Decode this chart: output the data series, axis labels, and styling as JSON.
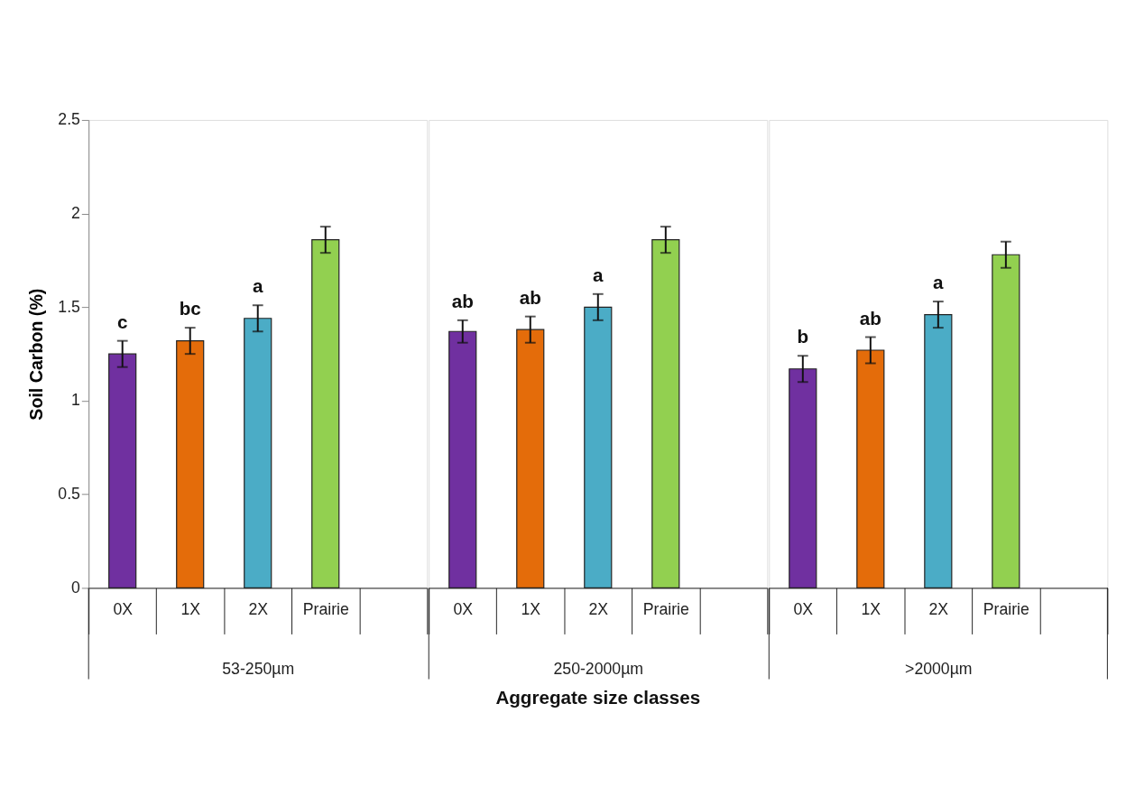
{
  "chart_data": [
    {
      "type": "bar",
      "categories": [
        "0X",
        "1X",
        "2X",
        "Prairie",
        null
      ],
      "values": [
        1.25,
        1.32,
        1.44,
        1.86,
        null
      ],
      "errors": [
        0.07,
        0.07,
        0.07,
        0.07,
        null
      ],
      "colors": [
        "#7030a0",
        "#e46c0a",
        "#4bacc6",
        "#92d050",
        "#ffffff"
      ],
      "xlabel": "53-250µm",
      "ylabel": "Soil Carbon (%)",
      "ylim": [
        0,
        2.5
      ],
      "yticks": [
        0,
        0.5,
        1,
        1.5,
        2,
        2.5
      ],
      "grid": false,
      "legend": false,
      "annotations": [
        {
          "text": "c",
          "x": "0X",
          "y": 1.32
        },
        {
          "text": "bc",
          "x": "1X",
          "y": 1.39
        },
        {
          "text": "a",
          "x": "2X",
          "y": 1.51
        }
      ]
    },
    {
      "type": "bar",
      "categories": [
        "0X",
        "1X",
        "2X",
        "Prairie",
        null
      ],
      "values": [
        1.37,
        1.38,
        1.5,
        1.86,
        null
      ],
      "errors": [
        0.06,
        0.07,
        0.07,
        0.07,
        null
      ],
      "colors": [
        "#7030a0",
        "#e46c0a",
        "#4bacc6",
        "#92d050",
        "#ffffff"
      ],
      "xlabel": "250-2000µm",
      "ylim": [
        0,
        2.5
      ],
      "tick_labels": "x",
      "grid": false,
      "legend": false,
      "annotations": [
        {
          "text": "ab",
          "x": "0X",
          "y": 1.43
        },
        {
          "text": "ab",
          "x": "1X",
          "y": 1.45
        },
        {
          "text": "a",
          "x": "2X",
          "y": 1.57
        },
        "Aggregate size classes"
      ]
    },
    {
      "type": "bar",
      "categories": [
        "0X",
        "1X",
        "2X",
        "Prairie",
        null
      ],
      "values": [
        1.17,
        1.27,
        1.46,
        1.78,
        null
      ],
      "errors": [
        0.07,
        0.07,
        0.07,
        0.07,
        null
      ],
      "colors": [
        "#7030a0",
        "#e46c0a",
        "#4bacc6",
        "#92d050",
        "#ffffff"
      ],
      "xlabel": ">2000µm",
      "ylim": [
        0,
        2.5
      ],
      "tick_labels": "x",
      "grid": false,
      "legend": false,
      "annotations": [
        {
          "text": "b",
          "x": "0X",
          "y": 1.24
        },
        {
          "text": "ab",
          "x": "1X",
          "y": 1.34
        },
        {
          "text": "a",
          "x": "2X",
          "y": 1.53
        }
      ]
    }
  ]
}
